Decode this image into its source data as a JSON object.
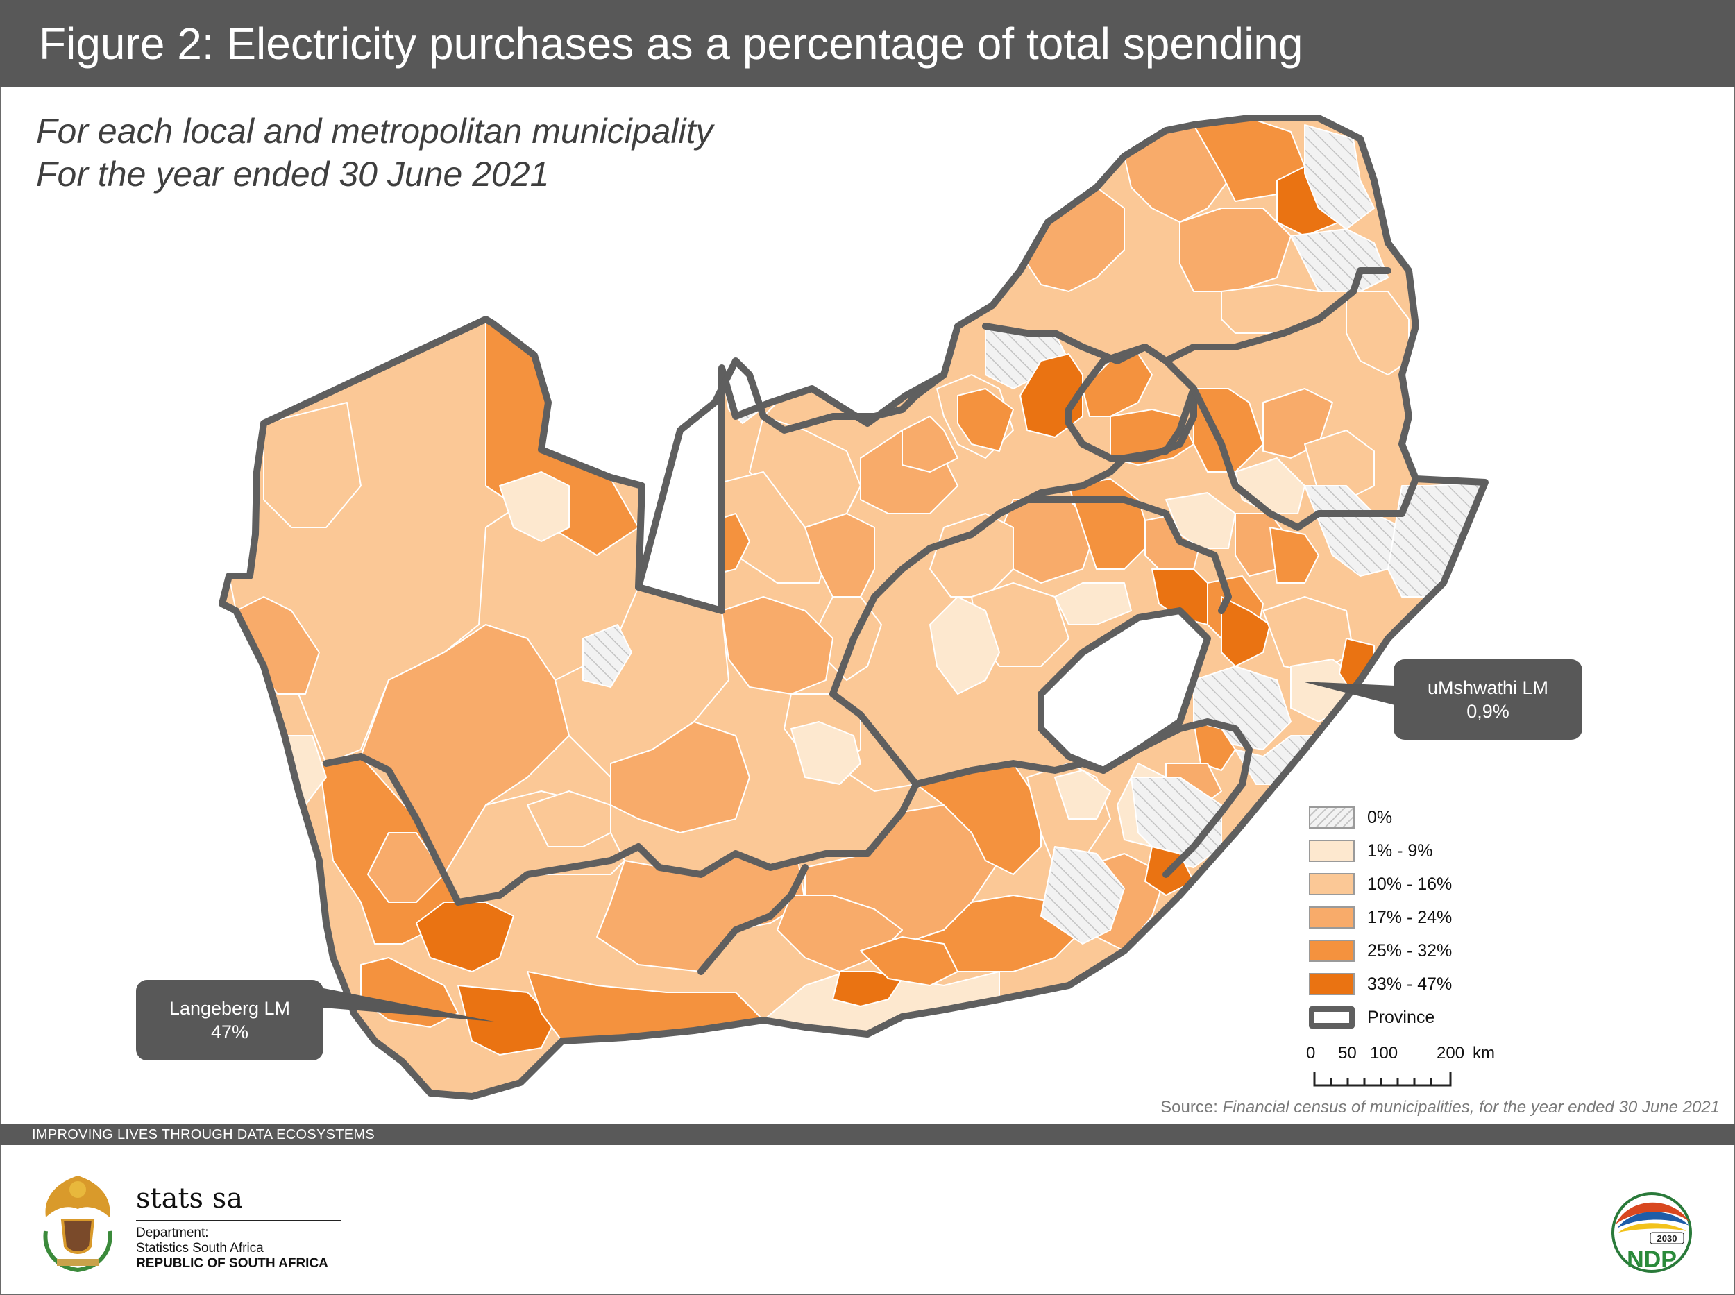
{
  "title": "Figure 2: Electricity purchases as a percentage of total spending",
  "subtitle": {
    "line1": "For each local and metropolitan municipality",
    "line2": "For the year ended 30 June 2021"
  },
  "map": {
    "type": "choropleth",
    "colors": {
      "c0": "#f0f0f0",
      "c1": "#fde8cf",
      "c2": "#fbc896",
      "c3": "#f8ab6a",
      "c4": "#f4923e",
      "c5": "#ea7312",
      "border": "#5f5f5f",
      "district": "#ffffff",
      "hatch": "#c4c4c4"
    },
    "legend": [
      {
        "label": "0%",
        "key": "c0",
        "hatched": true
      },
      {
        "label": "1% - 9%",
        "key": "c1"
      },
      {
        "label": "10% - 16%",
        "key": "c2"
      },
      {
        "label": "17% - 24%",
        "key": "c3"
      },
      {
        "label": "25% - 32%",
        "key": "c4"
      },
      {
        "label": "33% - 47%",
        "key": "c5"
      },
      {
        "label": "Province",
        "key": "province",
        "outline": true
      }
    ],
    "scale_bar": {
      "ticks": [
        "0",
        "50",
        "100",
        "200"
      ],
      "unit": "km"
    },
    "callouts": {
      "langeberg": {
        "name": "Langeberg LM",
        "value": "47%"
      },
      "umshwathi": {
        "name": "uMshwathi LM",
        "value": "0,9%"
      }
    }
  },
  "source": {
    "prefix": "Source:",
    "text": "Financial census of municipalities, for the year ended 30 June 2021"
  },
  "footer": {
    "tagline": "IMPROVING LIVES THROUGH DATA ECOSYSTEMS",
    "org_name": "stats sa",
    "org_line1": "Department:",
    "org_line2": "Statistics South Africa",
    "org_line3": "REPUBLIC OF SOUTH AFRICA",
    "ndp_badge": "NDP",
    "ndp_year": "2030"
  }
}
